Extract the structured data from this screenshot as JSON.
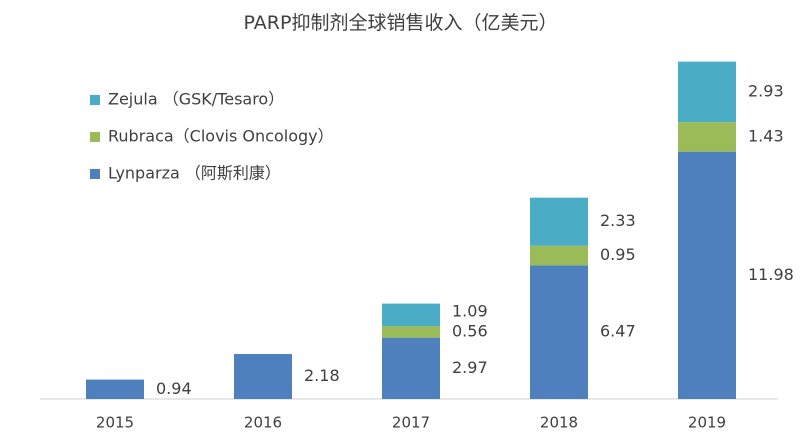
{
  "chart_data": {
    "type": "bar",
    "stacked": true,
    "title": "PARP抑制剂全球销售收入（亿美元）",
    "categories": [
      "2015",
      "2016",
      "2017",
      "2018",
      "2019"
    ],
    "series": [
      {
        "name": "Lynparza （阿斯利康）",
        "values": [
          0.94,
          2.18,
          2.97,
          6.47,
          11.98
        ],
        "color": "#4E80BD"
      },
      {
        "name": "Rubraca（Clovis Oncology）",
        "values": [
          null,
          null,
          0.56,
          0.95,
          1.43
        ],
        "color": "#9BBB59"
      },
      {
        "name": "Zejula （GSK/Tesaro）",
        "values": [
          null,
          null,
          1.09,
          2.33,
          2.93
        ],
        "color": "#4BACC6"
      }
    ],
    "legend_order": [
      "Zejula （GSK/Tesaro）",
      "Rubraca（Clovis Oncology）",
      "Lynparza （阿斯利康）"
    ],
    "legend_position": "top-left",
    "grid": false,
    "ylim": [
      0,
      17
    ]
  }
}
